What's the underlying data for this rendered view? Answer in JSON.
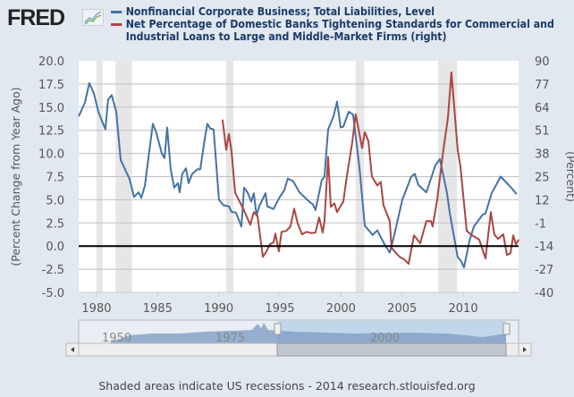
{
  "header": {
    "logo_text": "FRED",
    "logo_icon": "line-chart-icon"
  },
  "footer": {
    "text": "Shaded areas indicate US recessions - 2014 research.stlouisfed.org"
  },
  "navigator": {
    "labels": [
      "1950",
      "1975",
      "2000"
    ]
  },
  "chart_data": {
    "type": "line",
    "xlim": [
      1978.54,
      2014.53
    ],
    "x_ticks": [
      "1980",
      "1985",
      "1990",
      "1995",
      "2000",
      "2005",
      "2010"
    ],
    "left_axis": {
      "label": "(Percent Change from Year Ago)",
      "ylim": [
        -5,
        20
      ],
      "ticks": [
        "20.0",
        "17.5",
        "15.0",
        "12.5",
        "10.0",
        "7.5",
        "5.0",
        "2.5",
        "0.0",
        "-2.5",
        "-5.0"
      ]
    },
    "right_axis": {
      "label": "(Percent)",
      "ylim": [
        -40,
        90
      ],
      "ticks": [
        "90",
        "77",
        "64",
        "51",
        "38",
        "25",
        "12",
        "-1",
        "-14",
        "-27",
        "-40"
      ]
    },
    "grid": true,
    "zero_line": 0,
    "recessions": [
      [
        1980.0,
        1980.5
      ],
      [
        1981.55,
        1982.9
      ],
      [
        1990.6,
        1991.2
      ],
      [
        2001.2,
        2001.9
      ],
      [
        2007.95,
        2009.5
      ]
    ],
    "series": [
      {
        "name": "Nonfinancial Corporate Business; Total Liabilities, Level",
        "axis": "left",
        "color": "#4572a7",
        "points": [
          [
            1978.54,
            14
          ],
          [
            1979.05,
            15.5
          ],
          [
            1979.41,
            17.6
          ],
          [
            1979.78,
            16.5
          ],
          [
            1980.15,
            14.5
          ],
          [
            1980.73,
            12.6
          ],
          [
            1980.95,
            15.8
          ],
          [
            1981.24,
            16.3
          ],
          [
            1981.61,
            14.5
          ],
          [
            1981.98,
            9.3
          ],
          [
            1982.71,
            7.2
          ],
          [
            1983.07,
            5.3
          ],
          [
            1983.44,
            5.8
          ],
          [
            1983.66,
            5.2
          ],
          [
            1983.95,
            6.5
          ],
          [
            1984.39,
            11
          ],
          [
            1984.61,
            13.2
          ],
          [
            1984.9,
            12.2
          ],
          [
            1985.34,
            10
          ],
          [
            1985.56,
            9.5
          ],
          [
            1985.78,
            12.8
          ],
          [
            1986.07,
            8.3
          ],
          [
            1986.36,
            6.3
          ],
          [
            1986.66,
            6.8
          ],
          [
            1986.8,
            5.8
          ],
          [
            1987.02,
            7.8
          ],
          [
            1987.32,
            8.4
          ],
          [
            1987.53,
            6.8
          ],
          [
            1987.83,
            7.8
          ],
          [
            1988.27,
            8.3
          ],
          [
            1988.49,
            8.3
          ],
          [
            1988.85,
            11.5
          ],
          [
            1989.07,
            13.2
          ],
          [
            1989.29,
            12.7
          ],
          [
            1989.58,
            12.6
          ],
          [
            1990.02,
            5
          ],
          [
            1990.39,
            4.4
          ],
          [
            1990.83,
            4.3
          ],
          [
            1991.05,
            3.7
          ],
          [
            1991.41,
            3.6
          ],
          [
            1991.85,
            2.1
          ],
          [
            1992.07,
            6.3
          ],
          [
            1992.36,
            5.8
          ],
          [
            1992.66,
            4.8
          ],
          [
            1992.87,
            5.7
          ],
          [
            1993.09,
            3.3
          ],
          [
            1993.31,
            4.3
          ],
          [
            1993.83,
            5.7
          ],
          [
            1993.97,
            4.3
          ],
          [
            1994.12,
            4.2
          ],
          [
            1994.48,
            4.0
          ],
          [
            1994.99,
            5.3
          ],
          [
            1995.36,
            6.0
          ],
          [
            1995.65,
            7.3
          ],
          [
            1996.09,
            7.0
          ],
          [
            1996.61,
            5.8
          ],
          [
            1997.48,
            4.7
          ],
          [
            1997.7,
            4.5
          ],
          [
            1997.92,
            3.9
          ],
          [
            1998.43,
            7.1
          ],
          [
            1998.65,
            7.5
          ],
          [
            1998.95,
            12.6
          ],
          [
            1999.39,
            14
          ],
          [
            1999.68,
            15.6
          ],
          [
            1999.97,
            12.8
          ],
          [
            2000.19,
            12.9
          ],
          [
            2000.63,
            14.5
          ],
          [
            2000.99,
            14.2
          ],
          [
            2001.51,
            8.5
          ],
          [
            2001.95,
            2.2
          ],
          [
            2002.6,
            1.2
          ],
          [
            2002.97,
            1.7
          ],
          [
            2003.56,
            0.2
          ],
          [
            2003.99,
            -0.7
          ],
          [
            2004.29,
            0.8
          ],
          [
            2005.02,
            5
          ],
          [
            2005.75,
            7.5
          ],
          [
            2006.04,
            7.8
          ],
          [
            2006.33,
            6.6
          ],
          [
            2006.99,
            5.8
          ],
          [
            2007.72,
            8.7
          ],
          [
            2008.09,
            9.4
          ],
          [
            2008.68,
            5.7
          ],
          [
            2008.9,
            3.6
          ],
          [
            2009.55,
            -1.2
          ],
          [
            2009.77,
            -1.5
          ],
          [
            2010.07,
            -2.3
          ],
          [
            2010.5,
            0.5
          ],
          [
            2010.87,
            2.1
          ],
          [
            2011.6,
            3.4
          ],
          [
            2011.82,
            3.5
          ],
          [
            2012.33,
            5.7
          ],
          [
            2013.07,
            7.5
          ],
          [
            2013.8,
            6.5
          ],
          [
            2014.38,
            5.6
          ]
        ]
      },
      {
        "name": "Net Percentage of Domestic Banks Tightening Standards for Commercial and Industrial Loans to Large and Middle-Market Firms (right)",
        "axis": "right",
        "color": "#aa4643",
        "points": [
          [
            1990.31,
            57
          ],
          [
            1990.61,
            40
          ],
          [
            1990.83,
            49
          ],
          [
            1991.05,
            39
          ],
          [
            1991.34,
            16
          ],
          [
            1992.0,
            7
          ],
          [
            1992.58,
            -2
          ],
          [
            1992.87,
            5
          ],
          [
            1993.17,
            3
          ],
          [
            1993.61,
            -20
          ],
          [
            1993.9,
            -17
          ],
          [
            1994.19,
            -13
          ],
          [
            1994.48,
            -12
          ],
          [
            1994.63,
            -7
          ],
          [
            1994.92,
            -17
          ],
          [
            1995.14,
            -6
          ],
          [
            1995.51,
            -5.5
          ],
          [
            1995.87,
            -3
          ],
          [
            1996.17,
            7
          ],
          [
            1996.46,
            -1.4
          ],
          [
            1996.82,
            -7.4
          ],
          [
            1997.19,
            -6
          ],
          [
            1997.56,
            -6.7
          ],
          [
            1997.92,
            -6.4
          ],
          [
            1998.21,
            2
          ],
          [
            1998.51,
            -6.4
          ],
          [
            1998.65,
            0
          ],
          [
            1998.95,
            36
          ],
          [
            1999.17,
            8
          ],
          [
            1999.46,
            10
          ],
          [
            1999.68,
            5
          ],
          [
            2000.19,
            11
          ],
          [
            2000.48,
            25
          ],
          [
            2000.92,
            44
          ],
          [
            2001.21,
            60
          ],
          [
            2001.73,
            41
          ],
          [
            2001.95,
            50
          ],
          [
            2002.24,
            45
          ],
          [
            2002.53,
            25
          ],
          [
            2002.97,
            20
          ],
          [
            2003.26,
            22
          ],
          [
            2003.48,
            9
          ],
          [
            2003.99,
            0
          ],
          [
            2004.14,
            -15
          ],
          [
            2004.51,
            -18
          ],
          [
            2004.8,
            -20
          ],
          [
            2005.16,
            -21.4
          ],
          [
            2005.53,
            -24
          ],
          [
            2005.97,
            -8
          ],
          [
            2006.48,
            -12.4
          ],
          [
            2006.99,
            0
          ],
          [
            2007.36,
            0
          ],
          [
            2007.5,
            -3
          ],
          [
            2007.87,
            12
          ],
          [
            2008.38,
            40
          ],
          [
            2008.75,
            58
          ],
          [
            2009.04,
            83.5
          ],
          [
            2009.55,
            40
          ],
          [
            2009.77,
            31
          ],
          [
            2010.29,
            -5.4
          ],
          [
            2010.72,
            -8
          ],
          [
            2011.31,
            -10.4
          ],
          [
            2011.82,
            -21
          ],
          [
            2012.26,
            5
          ],
          [
            2012.55,
            -7.4
          ],
          [
            2012.85,
            -10
          ],
          [
            2013.28,
            -7.4
          ],
          [
            2013.58,
            -19
          ],
          [
            2013.87,
            -18
          ],
          [
            2014.09,
            -8
          ],
          [
            2014.31,
            -13
          ],
          [
            2014.53,
            -10.4
          ]
        ]
      }
    ]
  }
}
